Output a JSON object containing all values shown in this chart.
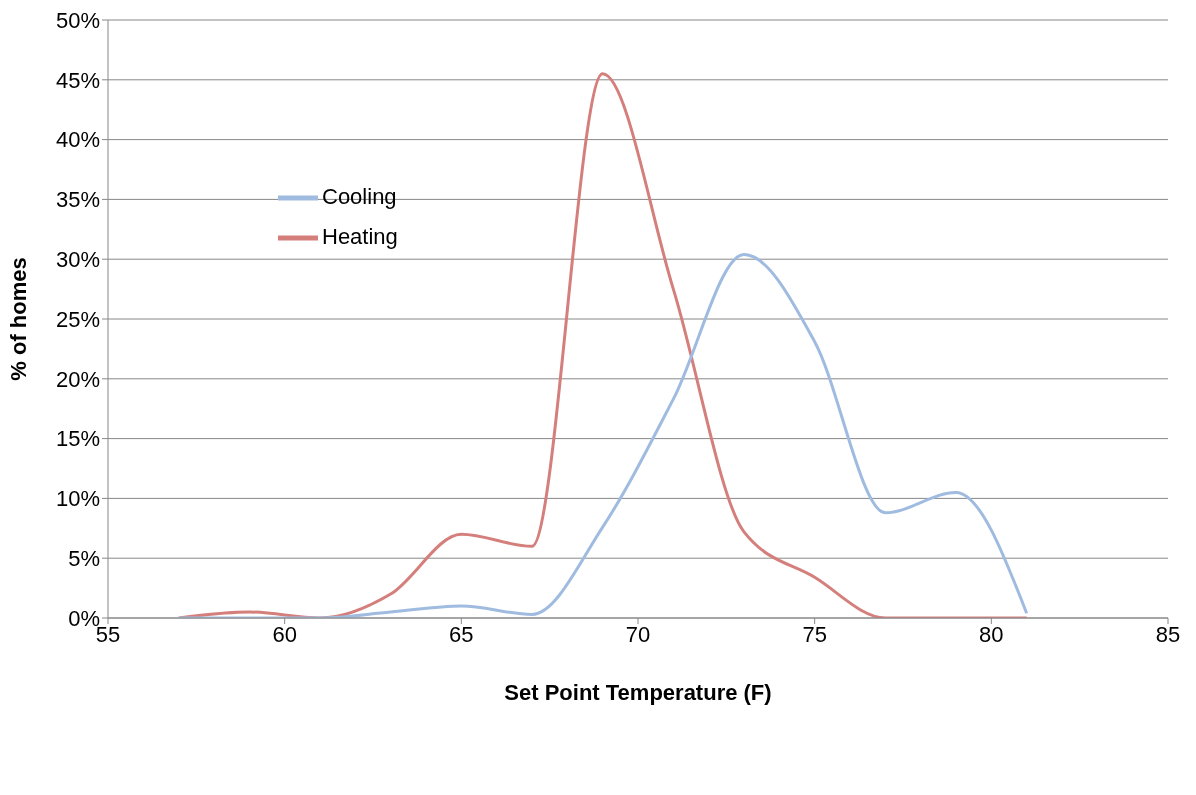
{
  "chart_data": {
    "type": "line",
    "xlabel": "Set Point Temperature (F)",
    "ylabel": "% of homes",
    "x": [
      57,
      59,
      61,
      63,
      65,
      67,
      69,
      71,
      73,
      75,
      77,
      79,
      81
    ],
    "series": [
      {
        "name": "Heating",
        "color": "#d47f7c",
        "values": [
          0,
          0.5,
          0,
          2,
          7,
          6,
          45.5,
          27.5,
          7.2,
          3.4,
          0,
          0,
          0
        ]
      },
      {
        "name": "Cooling",
        "color": "#9fbbe0",
        "values": [
          0,
          0,
          0,
          0.5,
          1,
          0.3,
          7.6,
          18.3,
          30.4,
          23.1,
          8.8,
          10.5,
          0.4
        ]
      }
    ],
    "xlim": [
      55,
      85
    ],
    "xticks": [
      55,
      60,
      65,
      70,
      75,
      80,
      85
    ],
    "ylim": [
      0,
      50
    ],
    "yticks": [
      {
        "value": 0,
        "label": "0%"
      },
      {
        "value": 5,
        "label": "5%"
      },
      {
        "value": 10,
        "label": "10%"
      },
      {
        "value": 15,
        "label": "15%"
      },
      {
        "value": 20,
        "label": "20%"
      },
      {
        "value": 25,
        "label": "25%"
      },
      {
        "value": 30,
        "label": "30%"
      },
      {
        "value": 35,
        "label": "35%"
      },
      {
        "value": 40,
        "label": "40%"
      },
      {
        "value": 45,
        "label": "45%"
      },
      {
        "value": 50,
        "label": "50%"
      }
    ],
    "grid": "y",
    "legend": "top left",
    "marker": "none",
    "line_style": "solid"
  }
}
